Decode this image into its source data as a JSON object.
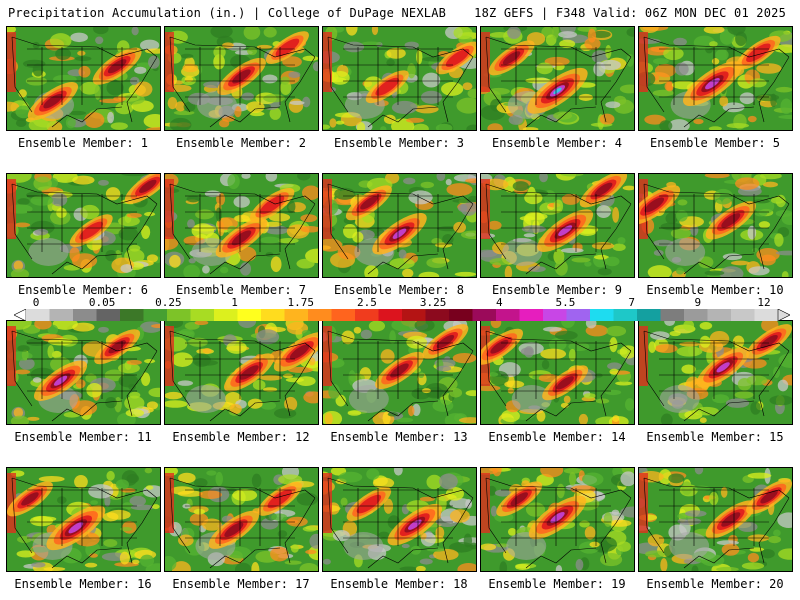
{
  "header": {
    "left": "Precipitation Accumulation (in.) | College of DuPage NEXLAB",
    "right": "18Z GEFS | F348 Valid: 06Z MON DEC 01 2025"
  },
  "colorbar": {
    "tick_labels": [
      "0",
      "0.05",
      "0.25",
      "1",
      "1.75",
      "2.5",
      "3.25",
      "4",
      "5.5",
      "7",
      "9",
      "12"
    ],
    "colors": [
      "#dcdcdc",
      "#b4b4b4",
      "#8c8c8c",
      "#646464",
      "#3c7828",
      "#46a032",
      "#7dc328",
      "#a8dc23",
      "#dcf01e",
      "#ffff1e",
      "#ffdc1e",
      "#ffb41e",
      "#ff8c1e",
      "#ff641e",
      "#f03c1e",
      "#dc141e",
      "#b41414",
      "#8c0a1e",
      "#78001e",
      "#9b0a5a",
      "#c3148c",
      "#e61ebe",
      "#c846e6",
      "#a064f0",
      "#1edcf0",
      "#1ec8c8",
      "#14a0a0",
      "#7d7d7d",
      "#9b9b9b",
      "#b4b4b4",
      "#c8c8c8",
      "#dcdcdc"
    ]
  },
  "panels": [
    {
      "label": "Ensemble Member: 1",
      "blobs": [
        [
          0.3,
          0.72,
          0.55
        ],
        [
          0.72,
          0.38,
          0.5
        ]
      ]
    },
    {
      "label": "Ensemble Member: 2",
      "blobs": [
        [
          0.5,
          0.48,
          0.5
        ],
        [
          0.8,
          0.2,
          0.3
        ]
      ]
    },
    {
      "label": "Ensemble Member: 3",
      "blobs": [
        [
          0.42,
          0.58,
          0.3
        ],
        [
          0.88,
          0.3,
          0.3
        ]
      ]
    },
    {
      "label": "Ensemble Member: 4",
      "blobs": [
        [
          0.5,
          0.62,
          0.9
        ],
        [
          0.2,
          0.3,
          0.4
        ]
      ]
    },
    {
      "label": "Ensemble Member: 5",
      "blobs": [
        [
          0.48,
          0.55,
          0.85
        ],
        [
          0.78,
          0.25,
          0.35
        ]
      ]
    },
    {
      "label": "Ensemble Member: 6",
      "blobs": [
        [
          0.55,
          0.55,
          0.3
        ],
        [
          0.92,
          0.12,
          0.4
        ]
      ]
    },
    {
      "label": "Ensemble Member: 7",
      "blobs": [
        [
          0.5,
          0.62,
          0.6
        ],
        [
          0.7,
          0.3,
          0.35
        ]
      ]
    },
    {
      "label": "Ensemble Member: 8",
      "blobs": [
        [
          0.5,
          0.58,
          0.7
        ],
        [
          0.3,
          0.28,
          0.4
        ]
      ]
    },
    {
      "label": "Ensemble Member: 9",
      "blobs": [
        [
          0.55,
          0.55,
          0.75
        ],
        [
          0.8,
          0.15,
          0.45
        ]
      ]
    },
    {
      "label": "Ensemble Member: 10",
      "blobs": [
        [
          0.6,
          0.45,
          0.55
        ],
        [
          0.1,
          0.3,
          0.6
        ]
      ]
    },
    {
      "label": "Ensemble Member: 11",
      "blobs": [
        [
          0.35,
          0.58,
          0.65
        ],
        [
          0.72,
          0.25,
          0.4
        ]
      ]
    },
    {
      "label": "Ensemble Member: 12",
      "blobs": [
        [
          0.55,
          0.5,
          0.55
        ],
        [
          0.88,
          0.3,
          0.6
        ]
      ]
    },
    {
      "label": "Ensemble Member: 13",
      "blobs": [
        [
          0.5,
          0.48,
          0.5
        ],
        [
          0.8,
          0.2,
          0.4
        ]
      ]
    },
    {
      "label": "Ensemble Member: 14",
      "blobs": [
        [
          0.55,
          0.6,
          0.4
        ],
        [
          0.12,
          0.25,
          0.45
        ]
      ]
    },
    {
      "label": "Ensemble Member: 15",
      "blobs": [
        [
          0.55,
          0.45,
          0.65
        ],
        [
          0.85,
          0.2,
          0.4
        ]
      ]
    },
    {
      "label": "Ensemble Member: 16",
      "blobs": [
        [
          0.45,
          0.58,
          0.85
        ],
        [
          0.15,
          0.3,
          0.4
        ]
      ]
    },
    {
      "label": "Ensemble Member: 17",
      "blobs": [
        [
          0.45,
          0.6,
          0.55
        ],
        [
          0.75,
          0.3,
          0.35
        ]
      ]
    },
    {
      "label": "Ensemble Member: 18",
      "blobs": [
        [
          0.6,
          0.55,
          0.7
        ],
        [
          0.3,
          0.35,
          0.35
        ]
      ]
    },
    {
      "label": "Ensemble Member: 19",
      "blobs": [
        [
          0.5,
          0.48,
          0.8
        ],
        [
          0.25,
          0.3,
          0.4
        ]
      ]
    },
    {
      "label": "Ensemble Member: 20",
      "blobs": [
        [
          0.6,
          0.5,
          0.55
        ],
        [
          0.85,
          0.28,
          0.4
        ]
      ]
    }
  ]
}
